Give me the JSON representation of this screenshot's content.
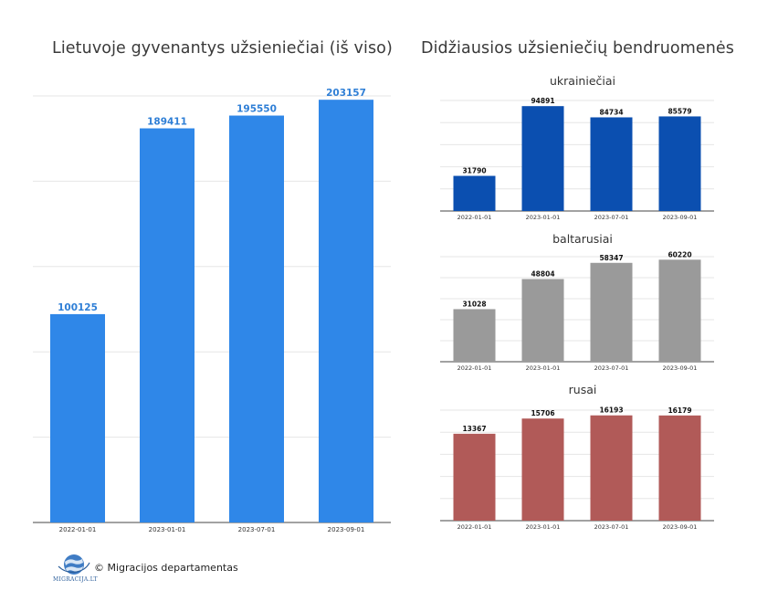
{
  "titles": {
    "left": "Lietuvoje gyvenantys užsieniečiai (iš viso)",
    "right": "Didžiausios užsieniečių bendruomenės"
  },
  "footer": {
    "credit": "© Migracijos departamentas",
    "logo_text": "MIGRACIJA.LT"
  },
  "chart_data": [
    {
      "type": "bar",
      "title": "Lietuvoje gyvenantys užsieniečiai (iš viso)",
      "categories": [
        "2022-01-01",
        "2023-01-01",
        "2023-07-01",
        "2023-09-01"
      ],
      "values": [
        100125,
        189411,
        195550,
        203157
      ],
      "ylim": [
        0,
        205000
      ],
      "grid": true,
      "color": "#2f87e8"
    },
    {
      "type": "bar",
      "title": "ukrainiečiai",
      "categories": [
        "2022-01-01",
        "2023-01-01",
        "2023-07-01",
        "2023-09-01"
      ],
      "values": [
        31790,
        94891,
        84734,
        85579
      ],
      "ylim": [
        0,
        100000
      ],
      "grid": true,
      "color": "#0b4fb0"
    },
    {
      "type": "bar",
      "title": "baltarusiai",
      "categories": [
        "2022-01-01",
        "2023-01-01",
        "2023-07-01",
        "2023-09-01"
      ],
      "values": [
        31028,
        48804,
        58347,
        60220
      ],
      "ylim": [
        0,
        62000
      ],
      "grid": true,
      "color": "#9a9a9a"
    },
    {
      "type": "bar",
      "title": "rusai",
      "categories": [
        "2022-01-01",
        "2023-01-01",
        "2023-07-01",
        "2023-09-01"
      ],
      "values": [
        13367,
        15706,
        16193,
        16179
      ],
      "ylim": [
        0,
        17000
      ],
      "grid": true,
      "color": "#b15a58"
    }
  ]
}
